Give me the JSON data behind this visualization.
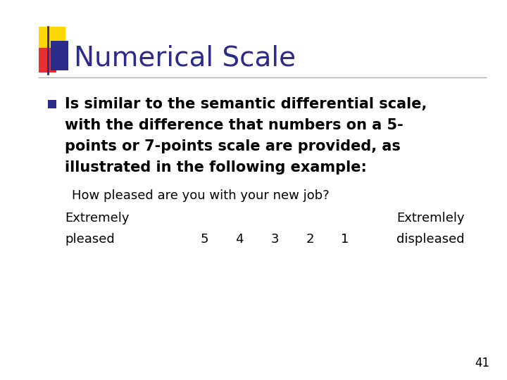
{
  "title": "Numerical Scale",
  "title_color": "#2B2B8A",
  "title_fontsize": 28,
  "background_color": "#FFFFFF",
  "bullet_text_line1": "Is similar to the semantic differential scale,",
  "bullet_text_line2": "with the difference that numbers on a 5-",
  "bullet_text_line3": "points or 7-points scale are provided, as",
  "bullet_text_line4": "illustrated in the following example:",
  "sub_line1": "How pleased are you with your new job?",
  "sub_line2_left": "Extremely",
  "sub_line2_right": "Extremlely",
  "sub_line3_left": "pleased",
  "sub_line3_numbers": [
    "5",
    "4",
    "3",
    "2",
    "1"
  ],
  "sub_line3_right": "displeased",
  "bullet_fontsize": 15,
  "sub_fontsize": 13,
  "text_color": "#000000",
  "bullet_color": "#2B2B8A",
  "slide_number": "41",
  "decoration_yellow": "#FFD700",
  "decoration_red": "#E83030",
  "decoration_blue": "#2B2B8A",
  "line_color": "#AAAAAA"
}
